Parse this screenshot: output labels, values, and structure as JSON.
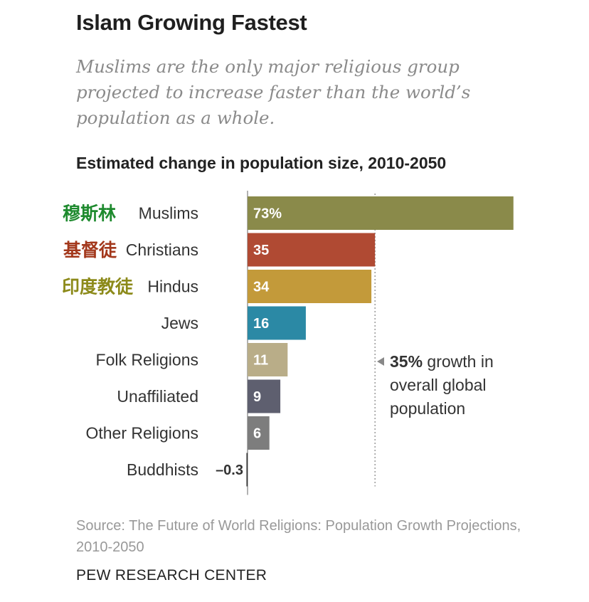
{
  "title": "Islam Growing Fastest",
  "subtitle": "Muslims are the only major religious group projected to increase faster than the world’s population as a whole.",
  "chart_heading": "Estimated change in population size, 2010-2050",
  "chart_data": {
    "type": "bar",
    "orientation": "horizontal",
    "title": "Estimated change in population size, 2010-2050",
    "categories": [
      "Muslims",
      "Christians",
      "Hindus",
      "Jews",
      "Folk Religions",
      "Unaffiliated",
      "Other Religions",
      "Buddhists"
    ],
    "values": [
      73,
      35,
      34,
      16,
      11,
      9,
      6,
      -0.3
    ],
    "value_labels": [
      "73%",
      "35",
      "34",
      "16",
      "11",
      "9",
      "6",
      "-0.3"
    ],
    "bar_colors": [
      "#8a8a4a",
      "#b04a33",
      "#c39a3a",
      "#2b89a5",
      "#b9ad88",
      "#5e5f6f",
      "#7d7d7d",
      "#333333"
    ],
    "reference_line": {
      "value": 35,
      "label": "35% growth in overall global population"
    },
    "chinese_labels": [
      {
        "category": "Muslims",
        "text": "穆斯林",
        "color": "#1e8a2e"
      },
      {
        "category": "Christians",
        "text": "基督徒",
        "color": "#a3381c"
      },
      {
        "category": "Hindus",
        "text": "印度教徒",
        "color": "#8c8a1a"
      }
    ]
  },
  "annotation": {
    "bold": "35%",
    "rest": " growth in overall global population"
  },
  "source": "Source: The Future of World Religions: Population Growth Projections, 2010-2050",
  "footer": "PEW RESEARCH CENTER"
}
